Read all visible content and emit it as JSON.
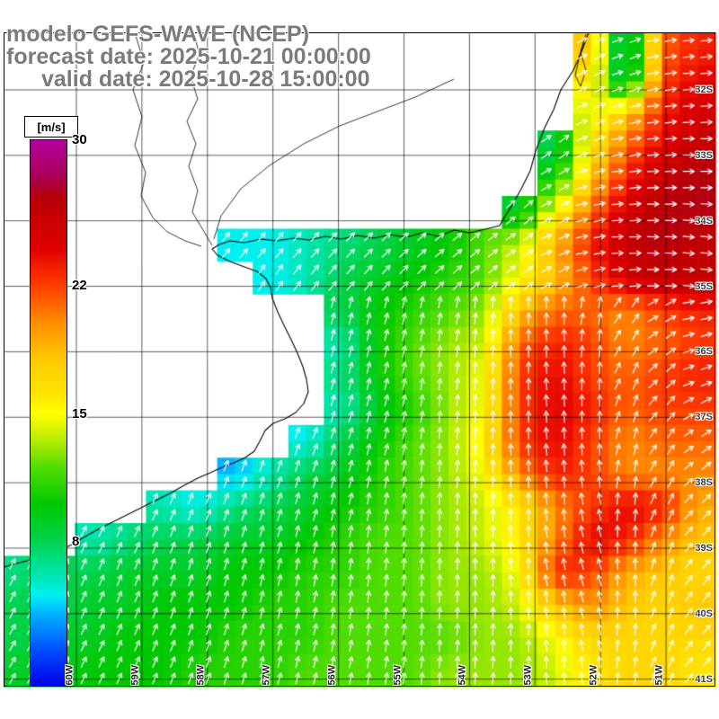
{
  "title": {
    "model": "modelo GEFS-WAVE (NCEP)",
    "forecast_date": "forecast date: 2025-10-21 00:00:00",
    "valid_date": "valid date: 2025-10-28 15:00:00"
  },
  "colorbar": {
    "unit_label": "[m/s]",
    "min": 0,
    "max": 30,
    "tick_labels": [
      "30",
      "22",
      "15",
      "8"
    ],
    "tick_values": [
      30,
      22,
      15,
      8
    ],
    "stops": [
      [
        0,
        "#0000e6"
      ],
      [
        2,
        "#0050ff"
      ],
      [
        4,
        "#00b4ff"
      ],
      [
        5,
        "#00f0f0"
      ],
      [
        6,
        "#00e6b4"
      ],
      [
        8,
        "#00d24b"
      ],
      [
        10,
        "#00c800"
      ],
      [
        12,
        "#50dc00"
      ],
      [
        13,
        "#96e600"
      ],
      [
        14,
        "#d2f000"
      ],
      [
        15,
        "#ffff00"
      ],
      [
        16,
        "#ffe600"
      ],
      [
        18,
        "#ffc800"
      ],
      [
        19,
        "#ffaa00"
      ],
      [
        20,
        "#ff8c00"
      ],
      [
        21,
        "#ff6400"
      ],
      [
        22,
        "#ff3c00"
      ],
      [
        23,
        "#f21e00"
      ],
      [
        24,
        "#e10000"
      ],
      [
        25,
        "#d20000"
      ],
      [
        26,
        "#c30000"
      ],
      [
        27,
        "#b4000f"
      ],
      [
        28,
        "#aa0055"
      ],
      [
        30,
        "#b400a0"
      ]
    ]
  },
  "axes": {
    "lat_labels": [
      "32S",
      "33S",
      "34S",
      "35S",
      "36S",
      "37S",
      "38S",
      "39S",
      "40S",
      "41S"
    ],
    "lon_labels": [
      "60W",
      "59W",
      "58W",
      "57W",
      "56W",
      "55W",
      "54W",
      "53W",
      "52W",
      "51W"
    ]
  },
  "chart_data": {
    "type": "heatmap",
    "title": "modelo GEFS-WAVE (NCEP)",
    "units": "m/s",
    "scale_min": 0,
    "scale_max": 30,
    "rows": 20,
    "cols": 20,
    "values": [
      [
        null,
        null,
        null,
        null,
        null,
        null,
        null,
        null,
        null,
        null,
        null,
        null,
        null,
        null,
        null,
        null,
        18,
        6,
        21,
        23
      ],
      [
        null,
        null,
        null,
        null,
        null,
        null,
        null,
        null,
        null,
        null,
        null,
        null,
        null,
        null,
        null,
        null,
        16,
        7,
        22,
        24
      ],
      [
        null,
        null,
        null,
        null,
        null,
        null,
        null,
        null,
        null,
        null,
        null,
        null,
        null,
        null,
        null,
        null,
        14,
        18,
        23,
        25
      ],
      [
        null,
        null,
        null,
        null,
        null,
        null,
        null,
        null,
        null,
        null,
        null,
        null,
        null,
        null,
        null,
        8,
        16,
        21,
        24,
        26
      ],
      [
        null,
        null,
        null,
        null,
        null,
        null,
        null,
        null,
        null,
        null,
        null,
        null,
        null,
        null,
        null,
        10,
        18,
        23,
        26,
        27
      ],
      [
        null,
        null,
        null,
        null,
        null,
        null,
        null,
        null,
        null,
        null,
        null,
        null,
        null,
        null,
        9,
        15,
        21,
        25,
        27,
        27
      ],
      [
        null,
        null,
        null,
        null,
        null,
        null,
        5,
        5,
        6,
        7,
        8,
        9,
        10,
        12,
        14,
        19,
        23,
        26,
        27,
        26
      ],
      [
        null,
        null,
        null,
        null,
        null,
        null,
        null,
        5,
        6,
        8,
        9,
        10,
        11,
        12,
        15,
        18,
        22,
        25,
        26,
        26
      ],
      [
        null,
        null,
        null,
        null,
        null,
        null,
        null,
        null,
        null,
        8,
        10,
        11,
        12,
        13,
        18,
        21,
        21,
        20,
        22,
        23
      ],
      [
        null,
        null,
        null,
        null,
        null,
        null,
        null,
        null,
        null,
        6,
        10,
        12,
        13,
        14,
        21,
        23,
        22,
        20,
        21,
        22
      ],
      [
        null,
        null,
        null,
        null,
        null,
        null,
        null,
        null,
        null,
        7,
        10,
        12,
        13,
        15,
        22,
        24,
        22,
        21,
        22,
        23
      ],
      [
        null,
        null,
        null,
        null,
        null,
        null,
        null,
        null,
        null,
        6,
        9,
        11,
        13,
        15,
        22,
        24,
        23,
        21,
        22,
        22
      ],
      [
        null,
        null,
        null,
        null,
        null,
        null,
        null,
        null,
        5,
        8,
        10,
        12,
        13,
        16,
        22,
        24,
        22,
        20,
        21,
        21
      ],
      [
        null,
        null,
        null,
        null,
        null,
        null,
        4,
        6,
        8,
        9,
        11,
        12,
        13,
        15,
        20,
        23,
        22,
        20,
        20,
        20
      ],
      [
        null,
        null,
        null,
        null,
        6,
        5,
        7,
        8,
        9,
        10,
        11,
        12,
        13,
        14,
        16,
        20,
        22,
        24,
        23,
        19
      ],
      [
        null,
        null,
        6,
        7,
        8,
        8,
        9,
        9,
        10,
        11,
        12,
        12,
        13,
        14,
        16,
        20,
        24,
        23,
        20,
        18
      ],
      [
        7,
        8,
        8,
        9,
        9,
        9,
        10,
        10,
        11,
        11,
        12,
        12,
        13,
        13,
        15,
        23,
        22,
        19,
        18,
        17
      ],
      [
        8,
        8,
        9,
        9,
        10,
        10,
        10,
        11,
        11,
        12,
        12,
        12,
        13,
        13,
        14,
        18,
        20,
        18,
        17,
        18
      ],
      [
        8,
        9,
        9,
        10,
        10,
        10,
        11,
        11,
        11,
        12,
        12,
        12,
        12,
        13,
        13,
        15,
        17,
        17,
        17,
        17
      ],
      [
        9,
        9,
        10,
        10,
        10,
        11,
        11,
        11,
        12,
        12,
        12,
        12,
        13,
        13,
        13,
        14,
        16,
        17,
        17,
        16
      ]
    ],
    "arrow_angles_deg": [
      [
        0,
        0,
        0,
        0,
        0,
        0,
        0,
        0,
        0,
        0,
        0,
        0,
        0,
        0,
        0,
        0,
        25,
        20,
        10,
        5
      ],
      [
        0,
        0,
        0,
        0,
        0,
        0,
        0,
        0,
        0,
        0,
        0,
        0,
        0,
        0,
        0,
        0,
        25,
        18,
        8,
        4
      ],
      [
        0,
        0,
        0,
        0,
        0,
        0,
        0,
        0,
        0,
        0,
        0,
        0,
        0,
        0,
        0,
        0,
        22,
        14,
        7,
        3
      ],
      [
        0,
        0,
        0,
        0,
        0,
        0,
        0,
        0,
        0,
        0,
        0,
        0,
        0,
        0,
        0,
        35,
        20,
        10,
        4,
        0
      ],
      [
        0,
        0,
        0,
        0,
        0,
        0,
        0,
        0,
        0,
        0,
        0,
        0,
        0,
        0,
        0,
        30,
        15,
        7,
        2,
        0
      ],
      [
        0,
        0,
        0,
        0,
        0,
        0,
        0,
        0,
        0,
        0,
        0,
        0,
        0,
        0,
        40,
        25,
        12,
        4,
        0,
        -3
      ],
      [
        0,
        0,
        0,
        0,
        0,
        0,
        50,
        50,
        48,
        46,
        44,
        42,
        40,
        38,
        35,
        22,
        10,
        2,
        -2,
        -5
      ],
      [
        0,
        0,
        0,
        0,
        0,
        0,
        0,
        55,
        52,
        50,
        48,
        45,
        42,
        40,
        38,
        28,
        15,
        5,
        0,
        -5
      ],
      [
        0,
        0,
        0,
        0,
        0,
        0,
        0,
        0,
        0,
        75,
        75,
        78,
        80,
        85,
        88,
        90,
        80,
        55,
        30,
        10
      ],
      [
        0,
        0,
        0,
        0,
        0,
        0,
        0,
        0,
        0,
        75,
        76,
        78,
        82,
        86,
        90,
        92,
        85,
        60,
        35,
        15
      ],
      [
        0,
        0,
        0,
        0,
        0,
        0,
        0,
        0,
        0,
        74,
        76,
        80,
        83,
        87,
        90,
        93,
        88,
        65,
        42,
        20
      ],
      [
        0,
        0,
        0,
        0,
        0,
        0,
        0,
        0,
        0,
        72,
        75,
        80,
        84,
        88,
        91,
        93,
        90,
        70,
        48,
        28
      ],
      [
        0,
        0,
        0,
        0,
        0,
        0,
        0,
        0,
        70,
        72,
        76,
        80,
        85,
        88,
        92,
        94,
        92,
        75,
        55,
        35
      ],
      [
        0,
        0,
        0,
        0,
        0,
        0,
        68,
        70,
        72,
        74,
        78,
        82,
        85,
        88,
        92,
        95,
        95,
        80,
        60,
        40
      ],
      [
        0,
        0,
        0,
        0,
        66,
        68,
        70,
        72,
        74,
        76,
        80,
        83,
        86,
        89,
        92,
        96,
        100,
        85,
        65,
        45
      ],
      [
        0,
        0,
        64,
        66,
        68,
        70,
        72,
        74,
        77,
        80,
        82,
        85,
        87,
        90,
        93,
        98,
        102,
        90,
        70,
        50
      ],
      [
        62,
        64,
        66,
        68,
        70,
        72,
        74,
        76,
        79,
        81,
        84,
        86,
        88,
        90,
        94,
        100,
        105,
        92,
        72,
        52
      ],
      [
        62,
        64,
        66,
        68,
        70,
        72,
        74,
        76,
        78,
        80,
        83,
        85,
        87,
        89,
        92,
        98,
        103,
        90,
        70,
        52
      ],
      [
        60,
        62,
        64,
        66,
        68,
        70,
        72,
        74,
        77,
        79,
        82,
        84,
        86,
        88,
        90,
        95,
        100,
        85,
        68,
        50
      ],
      [
        60,
        62,
        64,
        66,
        68,
        70,
        72,
        74,
        76,
        78,
        80,
        83,
        85,
        87,
        89,
        93,
        97,
        82,
        65,
        48
      ]
    ]
  },
  "map": {
    "coastline": [
      [
        655,
        36
      ],
      [
        648,
        55
      ],
      [
        638,
        78
      ],
      [
        624,
        100
      ],
      [
        616,
        122
      ],
      [
        606,
        142
      ],
      [
        596,
        168
      ],
      [
        590,
        190
      ],
      [
        580,
        210
      ],
      [
        570,
        228
      ],
      [
        561,
        242
      ],
      [
        556,
        251
      ],
      [
        540,
        255
      ],
      [
        522,
        259
      ],
      [
        505,
        256
      ],
      [
        488,
        263
      ],
      [
        470,
        259
      ],
      [
        452,
        264
      ],
      [
        434,
        261
      ],
      [
        416,
        265
      ],
      [
        398,
        262
      ],
      [
        380,
        266
      ],
      [
        362,
        263
      ],
      [
        344,
        267
      ],
      [
        326,
        265
      ],
      [
        308,
        268
      ],
      [
        290,
        266
      ],
      [
        272,
        270
      ],
      [
        256,
        268
      ],
      [
        244,
        272
      ],
      [
        236,
        277
      ],
      [
        242,
        284
      ],
      [
        256,
        291
      ],
      [
        272,
        297
      ],
      [
        286,
        302
      ],
      [
        296,
        310
      ],
      [
        301,
        320
      ],
      [
        303,
        332
      ],
      [
        309,
        347
      ],
      [
        316,
        362
      ],
      [
        324,
        378
      ],
      [
        331,
        393
      ],
      [
        337,
        408
      ],
      [
        341,
        422
      ],
      [
        343,
        436
      ],
      [
        338,
        449
      ],
      [
        329,
        459
      ],
      [
        317,
        466
      ],
      [
        304,
        471
      ],
      [
        295,
        479
      ],
      [
        289,
        491
      ],
      [
        283,
        502
      ],
      [
        273,
        509
      ],
      [
        260,
        515
      ],
      [
        247,
        520
      ],
      [
        234,
        526
      ],
      [
        220,
        532
      ],
      [
        205,
        540
      ],
      [
        189,
        549
      ],
      [
        173,
        557
      ],
      [
        157,
        565
      ],
      [
        141,
        573
      ],
      [
        125,
        581
      ],
      [
        109,
        589
      ],
      [
        93,
        598
      ],
      [
        80,
        606
      ],
      [
        66,
        612
      ],
      [
        50,
        618
      ],
      [
        34,
        623
      ],
      [
        18,
        627
      ],
      [
        4,
        631
      ]
    ],
    "rivers": [
      [
        [
          215,
          36
        ],
        [
          222,
          60
        ],
        [
          212,
          85
        ],
        [
          220,
          110
        ],
        [
          208,
          135
        ],
        [
          218,
          160
        ],
        [
          210,
          185
        ],
        [
          220,
          212
        ],
        [
          214,
          236
        ],
        [
          226,
          256
        ],
        [
          236,
          273
        ]
      ],
      [
        [
          150,
          36
        ],
        [
          160,
          70
        ],
        [
          148,
          100
        ],
        [
          158,
          130
        ],
        [
          150,
          162
        ],
        [
          162,
          192
        ],
        [
          157,
          218
        ],
        [
          170,
          242
        ],
        [
          186,
          258
        ],
        [
          206,
          268
        ],
        [
          224,
          274
        ]
      ],
      [
        [
          505,
          88
        ],
        [
          462,
          108
        ],
        [
          420,
          124
        ],
        [
          378,
          140
        ],
        [
          338,
          160
        ],
        [
          300,
          184
        ],
        [
          268,
          210
        ],
        [
          246,
          240
        ],
        [
          238,
          266
        ]
      ],
      [
        [
          652,
          38
        ],
        [
          646,
          58
        ],
        [
          652,
          78
        ],
        [
          646,
          96
        ],
        [
          640,
          84
        ],
        [
          645,
          62
        ],
        [
          650,
          44
        ]
      ]
    ]
  }
}
